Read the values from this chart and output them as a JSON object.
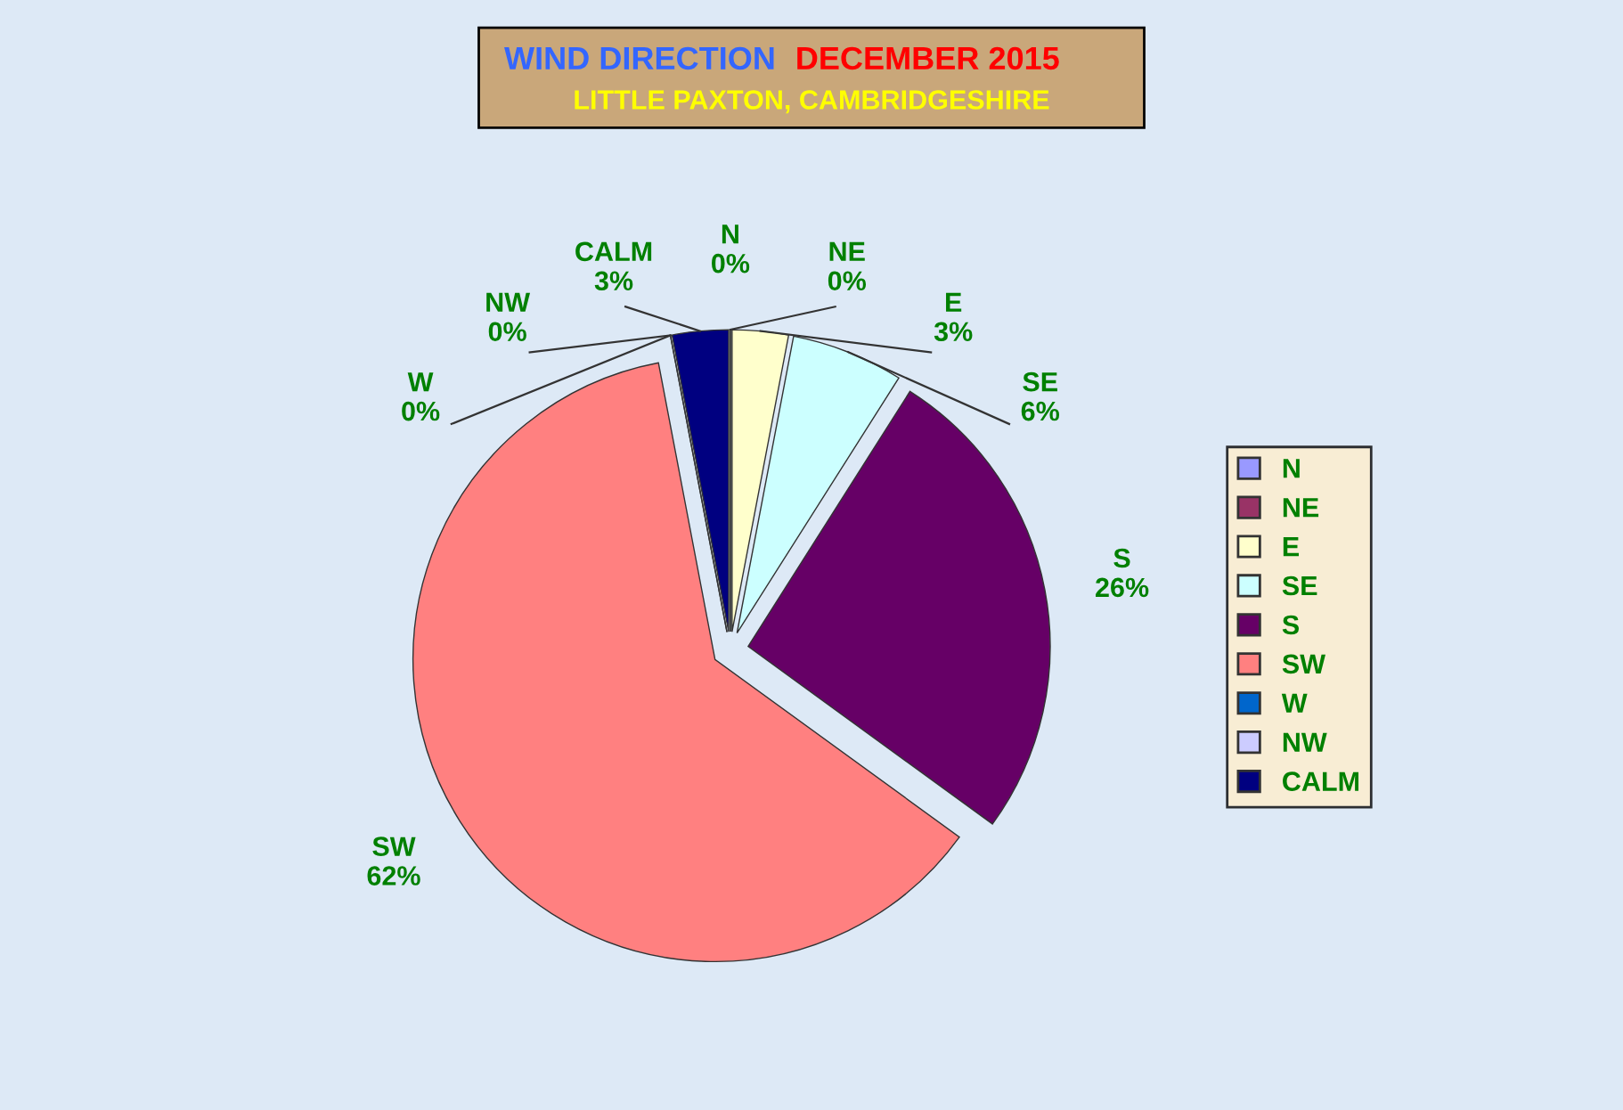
{
  "chart_data": {
    "type": "pie",
    "title": "WIND DIRECTION",
    "subtitle": "DECEMBER 2015",
    "annotations": [
      "LITTLE PAXTON, CAMBRIDGESHIRE"
    ],
    "categories": [
      "N",
      "NE",
      "E",
      "SE",
      "S",
      "SW",
      "W",
      "NW",
      "CALM"
    ],
    "values": [
      0,
      0,
      3,
      6,
      26,
      62,
      0,
      0,
      3
    ],
    "value_labels": [
      "0%",
      "0%",
      "3%",
      "6%",
      "26%",
      "62%",
      "0%",
      "0%",
      "3%"
    ],
    "colors": [
      "#9999ff",
      "#993366",
      "#ffffcc",
      "#ccffff",
      "#660066",
      "#ff8080",
      "#0066cc",
      "#ccccff",
      "#000080"
    ],
    "legend": "right"
  }
}
